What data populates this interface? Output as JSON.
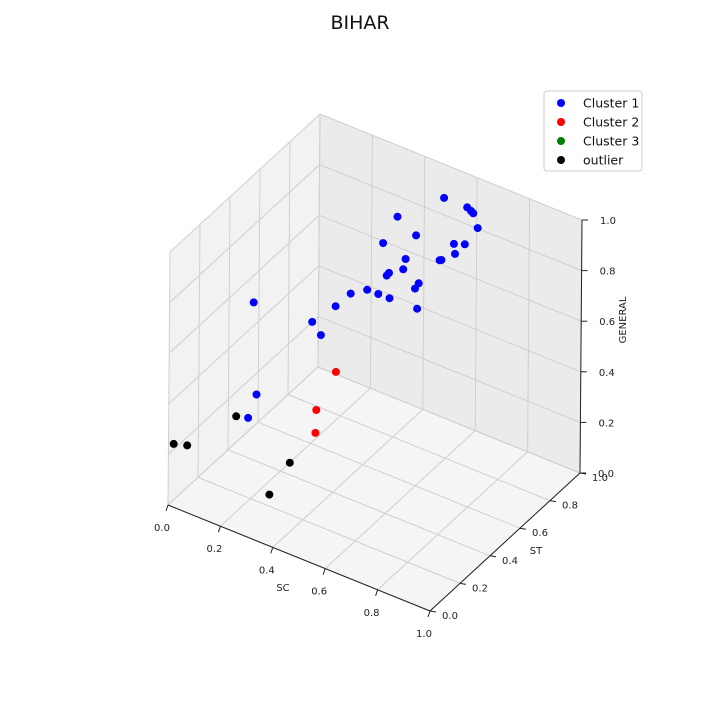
{
  "chart_data": {
    "type": "scatter3d",
    "title": "BIHAR",
    "xlabel": "SC",
    "ylabel": "ST",
    "zlabel": "GENERAL",
    "xlim": [
      0,
      1
    ],
    "ylim": [
      0,
      1
    ],
    "zlim": [
      0,
      1
    ],
    "x_ticks": [
      "0.0",
      "0.2",
      "0.4",
      "0.6",
      "0.8",
      "1.0"
    ],
    "y_ticks": [
      "0.0",
      "0.2",
      "0.4",
      "0.6",
      "0.8",
      "1.0"
    ],
    "z_ticks": [
      "0.0",
      "0.2",
      "0.4",
      "0.6",
      "0.8",
      "1.0"
    ],
    "grid": true,
    "legend_position": "top-right",
    "series": [
      {
        "name": "Cluster 1",
        "color": "#0000ff",
        "points": [
          [
            0.52,
            0.92,
            0.93
          ],
          [
            0.62,
            0.94,
            0.9
          ],
          [
            0.6,
            0.96,
            0.89
          ],
          [
            0.58,
            0.97,
            0.89
          ],
          [
            0.66,
            0.9,
            0.88
          ],
          [
            0.4,
            0.82,
            0.86
          ],
          [
            0.46,
            0.84,
            0.8
          ],
          [
            0.5,
            0.7,
            0.8
          ],
          [
            0.38,
            0.76,
            0.78
          ],
          [
            0.48,
            0.72,
            0.74
          ],
          [
            0.46,
            0.66,
            0.75
          ],
          [
            0.44,
            0.68,
            0.72
          ],
          [
            0.55,
            0.84,
            0.74
          ],
          [
            0.6,
            0.92,
            0.78
          ],
          [
            0.57,
            0.9,
            0.78
          ],
          [
            0.58,
            0.89,
            0.75
          ],
          [
            0.54,
            0.87,
            0.72
          ],
          [
            0.4,
            0.62,
            0.68
          ],
          [
            0.36,
            0.58,
            0.67
          ],
          [
            0.42,
            0.66,
            0.65
          ],
          [
            0.44,
            0.7,
            0.62
          ],
          [
            0.48,
            0.8,
            0.62
          ],
          [
            0.46,
            0.86,
            0.6
          ],
          [
            0.5,
            0.78,
            0.56
          ],
          [
            0.35,
            0.4,
            0.6
          ],
          [
            0.32,
            0.55,
            0.62
          ],
          [
            0.26,
            0.5,
            0.56
          ],
          [
            0.15,
            0.3,
            0.7
          ],
          [
            0.22,
            0.2,
            0.42
          ],
          [
            0.2,
            0.18,
            0.33
          ]
        ]
      },
      {
        "name": "Cluster 2",
        "color": "#ff0000",
        "points": [
          [
            0.38,
            0.45,
            0.44
          ],
          [
            0.38,
            0.32,
            0.36
          ],
          [
            0.4,
            0.28,
            0.3
          ]
        ]
      },
      {
        "name": "Cluster 3",
        "color": "#008000",
        "points": []
      },
      {
        "name": "outlier",
        "color": "#000000",
        "points": [
          [
            0.2,
            0.1,
            0.38
          ],
          [
            0.02,
            0.0,
            0.25
          ],
          [
            0.06,
            0.02,
            0.25
          ],
          [
            0.36,
            0.18,
            0.22
          ],
          [
            0.34,
            0.08,
            0.14
          ]
        ]
      }
    ]
  }
}
